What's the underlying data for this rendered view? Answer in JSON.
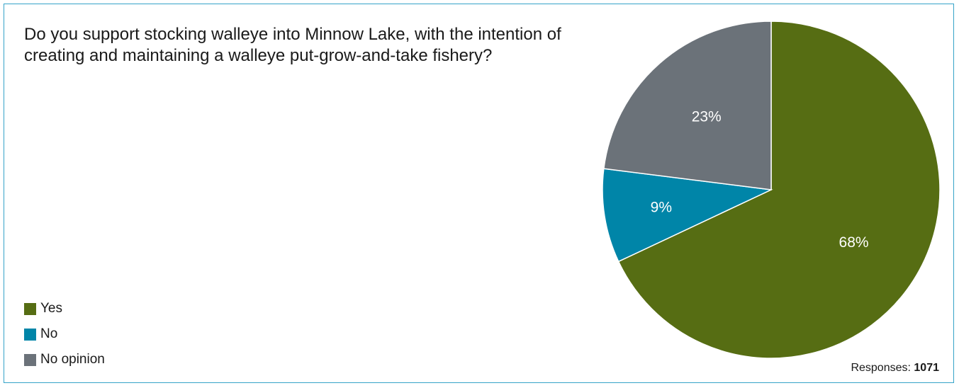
{
  "chart_data": {
    "type": "pie",
    "title": "Do you support stocking walleye into Minnow Lake, with the intention of creating and maintaining a walleye put-grow-and-take fishery?",
    "categories": [
      "Yes",
      "No",
      "No opinion"
    ],
    "values": [
      68,
      9,
      23
    ],
    "labels": [
      "68%",
      "9%",
      "23%"
    ],
    "colors": [
      "#566d13",
      "#0085a8",
      "#6b7279"
    ],
    "legend_position": "bottom-left",
    "responses_label": "Responses:",
    "responses_count": "1071"
  },
  "legend": {
    "items": [
      {
        "label": "Yes",
        "color": "#566d13"
      },
      {
        "label": "No",
        "color": "#0085a8"
      },
      {
        "label": "No opinion",
        "color": "#6b7279"
      }
    ]
  }
}
